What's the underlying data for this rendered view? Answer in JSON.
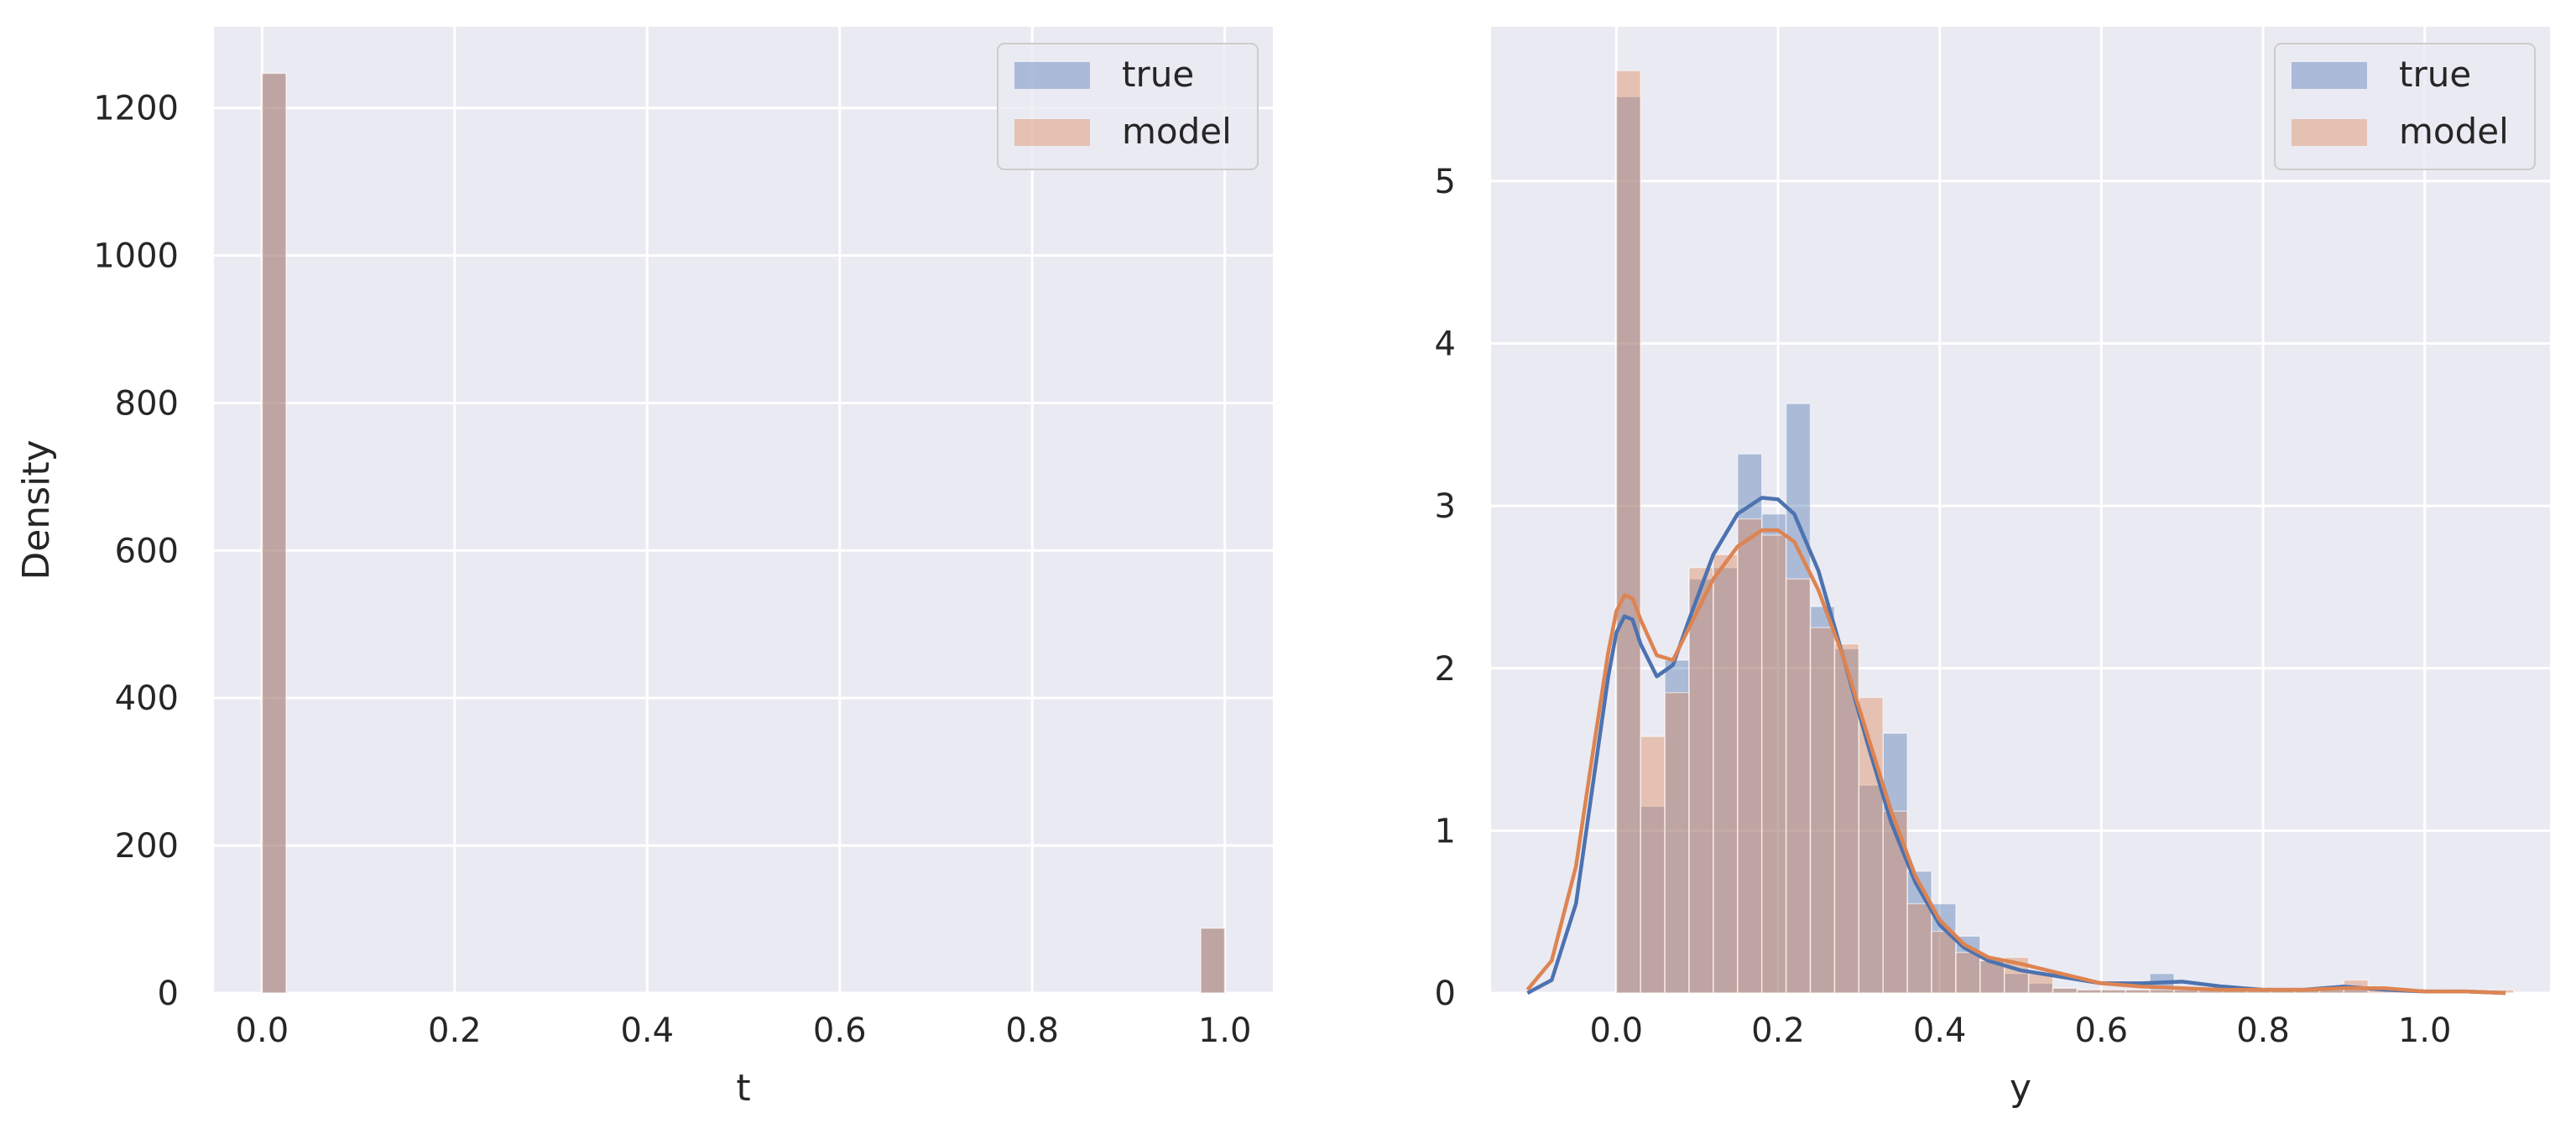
{
  "colors": {
    "true": "#4c72b0",
    "model": "#dd8452",
    "axes_bg": "#eaeaf2",
    "grid": "#ffffff"
  },
  "chart_data": [
    {
      "type": "bar",
      "style": "histogram",
      "xlabel": "t",
      "ylabel": "Density",
      "xlim": [
        -0.05,
        1.05
      ],
      "ylim": [
        0,
        1310
      ],
      "xticks": [
        0.0,
        0.2,
        0.4,
        0.6,
        0.8,
        1.0
      ],
      "xtick_labels": [
        "0.0",
        "0.2",
        "0.4",
        "0.6",
        "0.8",
        "1.0"
      ],
      "yticks": [
        0,
        200,
        400,
        600,
        800,
        1000,
        1200
      ],
      "ytick_labels": [
        "0",
        "200",
        "400",
        "600",
        "800",
        "1000",
        "1200"
      ],
      "grid": true,
      "legend_position": "top-right",
      "series": [
        {
          "name": "true",
          "color": "#4c72b0",
          "bars": [
            {
              "x0": 0.0,
              "x1": 0.025,
              "value": 1247
            },
            {
              "x0": 0.975,
              "x1": 1.0,
              "value": 88
            }
          ]
        },
        {
          "name": "model",
          "color": "#dd8452",
          "bars": [
            {
              "x0": 0.0,
              "x1": 0.025,
              "value": 1247
            },
            {
              "x0": 0.975,
              "x1": 1.0,
              "value": 88
            }
          ]
        }
      ]
    },
    {
      "type": "bar",
      "style": "histogram-with-kde",
      "xlabel": "y",
      "ylabel": "",
      "xlim": [
        -0.155,
        1.155
      ],
      "ylim": [
        0,
        5.95
      ],
      "xticks": [
        0.0,
        0.2,
        0.4,
        0.6,
        0.8,
        1.0
      ],
      "xtick_labels": [
        "0.0",
        "0.2",
        "0.4",
        "0.6",
        "0.8",
        "1.0"
      ],
      "yticks": [
        0,
        1,
        2,
        3,
        4,
        5
      ],
      "ytick_labels": [
        "0",
        "1",
        "2",
        "3",
        "4",
        "5"
      ],
      "grid": true,
      "legend_position": "top-right",
      "series": [
        {
          "name": "true",
          "color": "#4c72b0",
          "bin_start": 0.0,
          "bin_width": 0.03,
          "values": [
            5.52,
            1.15,
            2.05,
            2.55,
            2.62,
            3.32,
            2.95,
            3.63,
            2.38,
            2.12,
            1.28,
            1.6,
            0.75,
            0.55,
            0.35,
            0.2,
            0.12,
            0.06,
            0.03,
            0.02,
            0.02,
            0.02,
            0.12,
            0.02,
            0.02,
            0.02,
            0.02,
            0.02,
            0.02,
            0.02,
            0.02,
            0.0,
            0.0,
            0.0,
            0.0,
            0.0,
            0.0
          ],
          "kde_x": [
            -0.11,
            -0.08,
            -0.05,
            -0.03,
            -0.01,
            0.0,
            0.01,
            0.02,
            0.03,
            0.05,
            0.07,
            0.09,
            0.12,
            0.15,
            0.18,
            0.2,
            0.22,
            0.25,
            0.28,
            0.31,
            0.34,
            0.37,
            0.4,
            0.43,
            0.46,
            0.5,
            0.55,
            0.6,
            0.65,
            0.7,
            0.75,
            0.8,
            0.85,
            0.9,
            0.95,
            1.0,
            1.05,
            1.1
          ],
          "kde_y": [
            0.0,
            0.08,
            0.55,
            1.25,
            1.95,
            2.22,
            2.32,
            2.3,
            2.15,
            1.95,
            2.02,
            2.3,
            2.7,
            2.95,
            3.05,
            3.04,
            2.95,
            2.6,
            2.08,
            1.55,
            1.05,
            0.68,
            0.42,
            0.28,
            0.2,
            0.14,
            0.1,
            0.06,
            0.06,
            0.07,
            0.04,
            0.02,
            0.02,
            0.04,
            0.02,
            0.01,
            0.01,
            0.0
          ]
        },
        {
          "name": "model",
          "color": "#dd8452",
          "bin_start": 0.0,
          "bin_width": 0.03,
          "values": [
            5.68,
            1.58,
            1.85,
            2.62,
            2.7,
            2.92,
            2.82,
            2.55,
            2.25,
            2.15,
            1.82,
            1.12,
            0.55,
            0.38,
            0.25,
            0.2,
            0.22,
            0.12,
            0.03,
            0.02,
            0.02,
            0.02,
            0.02,
            0.02,
            0.02,
            0.02,
            0.02,
            0.02,
            0.02,
            0.02,
            0.08,
            0.02,
            0.02,
            0.02,
            0.02,
            0.02,
            0.02
          ],
          "kde_x": [
            -0.11,
            -0.08,
            -0.05,
            -0.03,
            -0.01,
            0.0,
            0.01,
            0.02,
            0.03,
            0.05,
            0.07,
            0.09,
            0.12,
            0.15,
            0.18,
            0.2,
            0.22,
            0.25,
            0.28,
            0.31,
            0.34,
            0.37,
            0.4,
            0.43,
            0.46,
            0.5,
            0.55,
            0.6,
            0.65,
            0.7,
            0.75,
            0.8,
            0.85,
            0.9,
            0.95,
            1.0,
            1.05,
            1.1
          ],
          "kde_y": [
            0.02,
            0.2,
            0.78,
            1.45,
            2.1,
            2.35,
            2.45,
            2.43,
            2.3,
            2.08,
            2.05,
            2.25,
            2.55,
            2.75,
            2.85,
            2.85,
            2.78,
            2.48,
            2.08,
            1.6,
            1.12,
            0.72,
            0.45,
            0.3,
            0.22,
            0.18,
            0.12,
            0.06,
            0.04,
            0.03,
            0.02,
            0.02,
            0.02,
            0.03,
            0.03,
            0.01,
            0.01,
            0.0
          ]
        }
      ]
    }
  ]
}
